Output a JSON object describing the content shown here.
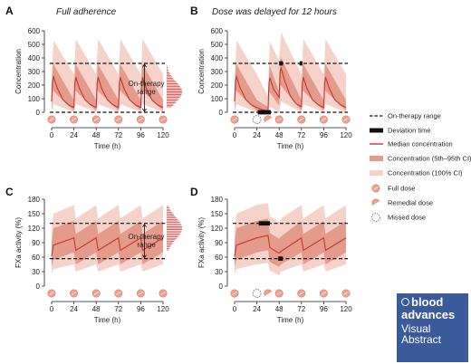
{
  "chart_data": [
    {
      "panel": "A",
      "type": "line",
      "title": "Full adherence",
      "ylabel": "Concentration",
      "xlabel": "Time (h)",
      "xlim": [
        0,
        120
      ],
      "ylim": [
        0,
        600
      ],
      "xticks": [
        0,
        24,
        48,
        72,
        96,
        120
      ],
      "yticks": [
        0,
        100,
        200,
        300,
        400,
        500,
        600
      ],
      "range": [
        0,
        360
      ],
      "range_label": "On-therapy range",
      "full_doses": [
        0,
        24,
        48,
        72,
        96,
        120
      ],
      "remedial_doses": [],
      "missed_doses": [],
      "deviation": [],
      "series": [
        {
          "role": "median",
          "x": [
            0,
            1,
            2,
            6,
            12,
            18,
            24,
            25,
            26,
            30,
            36,
            42,
            48,
            49,
            50,
            54,
            60,
            66,
            72,
            73,
            74,
            78,
            84,
            90,
            96,
            97,
            98,
            102,
            108,
            114,
            120
          ],
          "values": [
            80,
            230,
            262,
            180,
            95,
            55,
            35,
            215,
            258,
            175,
            92,
            55,
            35,
            215,
            258,
            175,
            92,
            55,
            35,
            215,
            258,
            175,
            92,
            55,
            35,
            215,
            258,
            175,
            92,
            55,
            35
          ]
        },
        {
          "role": "ci_5_95_upper",
          "x": [
            0,
            1.5,
            24,
            25.5,
            48,
            49.5,
            72,
            73.5,
            96,
            97.5,
            120
          ],
          "values": [
            170,
            360,
            90,
            360,
            90,
            360,
            90,
            360,
            90,
            360,
            90
          ]
        },
        {
          "role": "ci_5_95_lower",
          "x": [
            0,
            1.5,
            24,
            25.5,
            48,
            49.5,
            72,
            73.5,
            96,
            97.5,
            120
          ],
          "values": [
            0,
            160,
            10,
            160,
            10,
            160,
            10,
            160,
            10,
            160,
            10
          ]
        },
        {
          "role": "ci_100_upper",
          "x": [
            0,
            2,
            24,
            26,
            48,
            50,
            72,
            74,
            96,
            98,
            120
          ],
          "values": [
            250,
            530,
            280,
            540,
            280,
            540,
            280,
            540,
            280,
            540,
            280
          ]
        },
        {
          "role": "ci_100_lower",
          "x": [
            0,
            2,
            24,
            26,
            48,
            50,
            72,
            74,
            96,
            98,
            120
          ],
          "values": [
            0,
            60,
            0,
            60,
            0,
            60,
            0,
            60,
            0,
            60,
            0
          ]
        }
      ],
      "distribution": {
        "side": "right",
        "value_range": [
          40,
          340
        ],
        "peak": 150
      }
    },
    {
      "panel": "B",
      "type": "line",
      "title": "Dose was delayed for 12 hours",
      "ylabel": "Concentration",
      "xlabel": "Time (h)",
      "xlim": [
        0,
        120
      ],
      "ylim": [
        0,
        600
      ],
      "xticks": [
        0,
        24,
        48,
        72,
        96,
        120
      ],
      "yticks": [
        0,
        100,
        200,
        300,
        400,
        500,
        600
      ],
      "range": [
        0,
        360
      ],
      "full_doses": [
        0,
        48,
        72,
        96,
        120
      ],
      "remedial_doses": [
        36
      ],
      "missed_doses": [
        24
      ],
      "deviation": [
        [
          25,
          39,
          0
        ],
        [
          48,
          52,
          360
        ],
        [
          70,
          73,
          360
        ]
      ],
      "series": [
        {
          "role": "median",
          "x": [
            0,
            1,
            2,
            6,
            12,
            18,
            24,
            30,
            36,
            37,
            38,
            42,
            48,
            49,
            50,
            54,
            60,
            66,
            72,
            73,
            74,
            78,
            84,
            90,
            96,
            97,
            98,
            102,
            108,
            114,
            120
          ],
          "values": [
            80,
            230,
            262,
            180,
            95,
            55,
            35,
            18,
            10,
            210,
            255,
            170,
            110,
            300,
            325,
            230,
            120,
            65,
            40,
            215,
            258,
            175,
            92,
            55,
            35,
            215,
            258,
            175,
            92,
            55,
            35
          ]
        },
        {
          "role": "ci_5_95_upper",
          "x": [
            0,
            1.5,
            24,
            36,
            37.5,
            48,
            49.5,
            72,
            73.5,
            96,
            97.5,
            120
          ],
          "values": [
            170,
            360,
            90,
            40,
            350,
            150,
            410,
            90,
            360,
            90,
            360,
            90
          ]
        },
        {
          "role": "ci_5_95_lower",
          "x": [
            0,
            1.5,
            24,
            36,
            37.5,
            48,
            49.5,
            72,
            73.5,
            96,
            97.5,
            120
          ],
          "values": [
            0,
            160,
            10,
            0,
            150,
            50,
            200,
            10,
            160,
            10,
            160,
            10
          ]
        },
        {
          "role": "ci_100_upper",
          "x": [
            0,
            2,
            24,
            36,
            38,
            48,
            50,
            72,
            74,
            96,
            98,
            120
          ],
          "values": [
            250,
            530,
            280,
            120,
            520,
            380,
            590,
            280,
            540,
            280,
            540,
            280
          ]
        },
        {
          "role": "ci_100_lower",
          "x": [
            0,
            2,
            24,
            36,
            38,
            48,
            50,
            72,
            74,
            96,
            98,
            120
          ],
          "values": [
            0,
            60,
            0,
            0,
            40,
            0,
            80,
            0,
            60,
            0,
            60,
            0
          ]
        }
      ]
    },
    {
      "panel": "C",
      "type": "line",
      "title": "",
      "ylabel": "FXa activity (%)",
      "xlabel": "Time (h)",
      "xlim": [
        0,
        120
      ],
      "ylim": [
        0,
        180
      ],
      "xticks": [
        0,
        24,
        48,
        72,
        96,
        120
      ],
      "yticks": [
        0,
        30,
        60,
        90,
        120,
        150,
        180
      ],
      "range": [
        57,
        130
      ],
      "range_label": "On-therapy range",
      "full_doses": [
        0,
        24,
        48,
        72,
        96,
        120
      ],
      "remedial_doses": [],
      "missed_doses": [],
      "deviation": [],
      "series": [
        {
          "role": "median",
          "x": [
            0,
            2,
            24,
            26,
            48,
            50,
            72,
            74,
            96,
            98,
            120
          ],
          "values": [
            62,
            85,
            100,
            74,
            100,
            74,
            100,
            74,
            100,
            74,
            100
          ]
        },
        {
          "role": "ci_5_95_upper",
          "x": [
            0,
            2,
            24,
            26,
            48,
            50,
            72,
            74,
            96,
            98,
            120
          ],
          "values": [
            92,
            120,
            135,
            108,
            135,
            108,
            135,
            108,
            135,
            108,
            135
          ]
        },
        {
          "role": "ci_5_95_lower",
          "x": [
            0,
            2,
            24,
            26,
            48,
            50,
            72,
            74,
            96,
            98,
            120
          ],
          "values": [
            40,
            55,
            70,
            45,
            70,
            45,
            70,
            45,
            70,
            45,
            70
          ]
        },
        {
          "role": "ci_100_upper",
          "x": [
            0,
            2,
            24,
            26,
            48,
            50,
            72,
            74,
            96,
            98,
            120
          ],
          "values": [
            120,
            150,
            168,
            140,
            168,
            140,
            168,
            140,
            168,
            140,
            168
          ]
        },
        {
          "role": "ci_100_lower",
          "x": [
            0,
            2,
            24,
            26,
            48,
            50,
            72,
            74,
            96,
            98,
            120
          ],
          "values": [
            25,
            35,
            45,
            30,
            45,
            30,
            45,
            30,
            45,
            30,
            45
          ]
        }
      ],
      "distribution": {
        "side": "right",
        "value_range": [
          75,
          165
        ],
        "peak": 120
      }
    },
    {
      "panel": "D",
      "type": "line",
      "title": "",
      "ylabel": "FXa activity (%)",
      "xlabel": "Time (h)",
      "xlim": [
        0,
        120
      ],
      "ylim": [
        0,
        180
      ],
      "xticks": [
        0,
        24,
        48,
        72,
        96,
        120
      ],
      "yticks": [
        0,
        30,
        60,
        90,
        120,
        150,
        180
      ],
      "range": [
        57,
        130
      ],
      "full_doses": [
        0,
        48,
        72,
        96,
        120
      ],
      "remedial_doses": [
        36
      ],
      "missed_doses": [
        24
      ],
      "deviation": [
        [
          26,
          38,
          130
        ],
        [
          47,
          52,
          57
        ]
      ],
      "series": [
        {
          "role": "median",
          "x": [
            0,
            2,
            24,
            36,
            38,
            48,
            50,
            72,
            74,
            96,
            98,
            120
          ],
          "values": [
            62,
            85,
            100,
            105,
            80,
            68,
            72,
            100,
            74,
            100,
            74,
            100
          ]
        },
        {
          "role": "ci_5_95_upper",
          "x": [
            0,
            2,
            24,
            36,
            38,
            48,
            50,
            72,
            74,
            96,
            98,
            120
          ],
          "values": [
            92,
            120,
            135,
            140,
            110,
            98,
            103,
            135,
            108,
            135,
            108,
            135
          ]
        },
        {
          "role": "ci_5_95_lower",
          "x": [
            0,
            2,
            24,
            36,
            38,
            48,
            50,
            72,
            74,
            96,
            98,
            120
          ],
          "values": [
            40,
            55,
            70,
            74,
            50,
            40,
            45,
            70,
            45,
            70,
            45,
            70
          ]
        },
        {
          "role": "ci_100_upper",
          "x": [
            0,
            2,
            24,
            36,
            38,
            48,
            50,
            72,
            74,
            96,
            98,
            120
          ],
          "values": [
            120,
            150,
            168,
            172,
            145,
            132,
            140,
            168,
            140,
            168,
            140,
            168
          ]
        },
        {
          "role": "ci_100_lower",
          "x": [
            0,
            2,
            24,
            36,
            38,
            48,
            50,
            72,
            74,
            96,
            98,
            120
          ],
          "values": [
            25,
            35,
            45,
            48,
            32,
            22,
            30,
            45,
            30,
            45,
            30,
            45
          ]
        }
      ]
    }
  ],
  "legend": {
    "entries": [
      {
        "key": "range",
        "label": "On-therapy range"
      },
      {
        "key": "deviation",
        "label": "Deviation time"
      },
      {
        "key": "median",
        "label": "Median concentration"
      },
      {
        "key": "ci90",
        "label": "Concentration (5th–95th CI)"
      },
      {
        "key": "ci100",
        "label": "Concentration (100% CI)"
      },
      {
        "key": "full",
        "label": "Full dose"
      },
      {
        "key": "remedial",
        "label": "Remedial dose"
      },
      {
        "key": "missed",
        "label": "Missed dose"
      }
    ]
  },
  "colors": {
    "median": "#c8332f",
    "ci90": "#e59b8c",
    "ci100": "#f6d3ca",
    "pill": "#eba291",
    "pill_edge": "#d97a68",
    "range_line": "#111111",
    "deviation": "#111111"
  },
  "badge": {
    "line1": "blood",
    "line2": "advances",
    "line3": "Visual",
    "line4": "Abstract"
  }
}
